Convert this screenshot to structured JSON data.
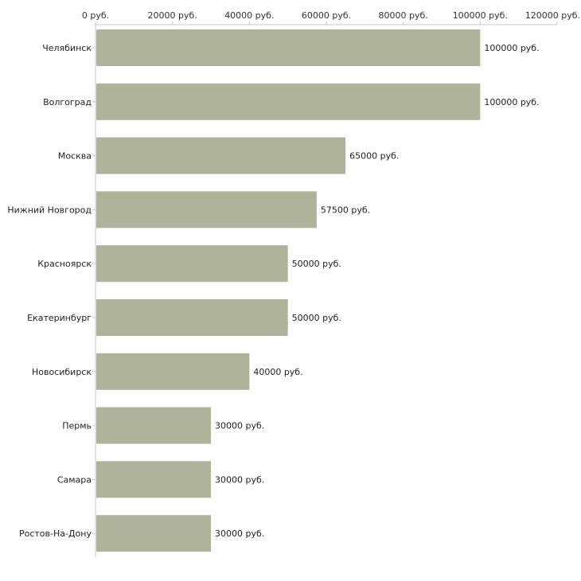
{
  "chart_data": {
    "type": "bar",
    "orientation": "horizontal",
    "title": "",
    "xlabel": "",
    "ylabel": "",
    "x_axis_position": "top",
    "xlim": [
      0,
      120000
    ],
    "x_ticks": [
      0,
      20000,
      40000,
      60000,
      80000,
      100000,
      120000
    ],
    "tick_labels": [
      "0 руб.",
      "20000 руб.",
      "40000 руб.",
      "60000 руб.",
      "80000 руб.",
      "100000 руб.",
      "120000 руб."
    ],
    "grid": false,
    "legend": "none",
    "bar_color": "#aeb399",
    "categories": [
      "Челябинск",
      "Волгоград",
      "Москва",
      "Нижний Новгород",
      "Красноярск",
      "Екатеринбург",
      "Новосибирск",
      "Пермь",
      "Самара",
      "Ростов-На-Дону"
    ],
    "values": [
      100000,
      100000,
      65000,
      57500,
      50000,
      50000,
      40000,
      30000,
      30000,
      30000
    ],
    "data_labels": [
      "100000 руб.",
      "100000 руб.",
      "65000 руб.",
      "57500 руб.",
      "50000 руб.",
      "50000 руб.",
      "40000 руб.",
      "30000 руб.",
      "30000 руб.",
      "30000 руб."
    ]
  }
}
